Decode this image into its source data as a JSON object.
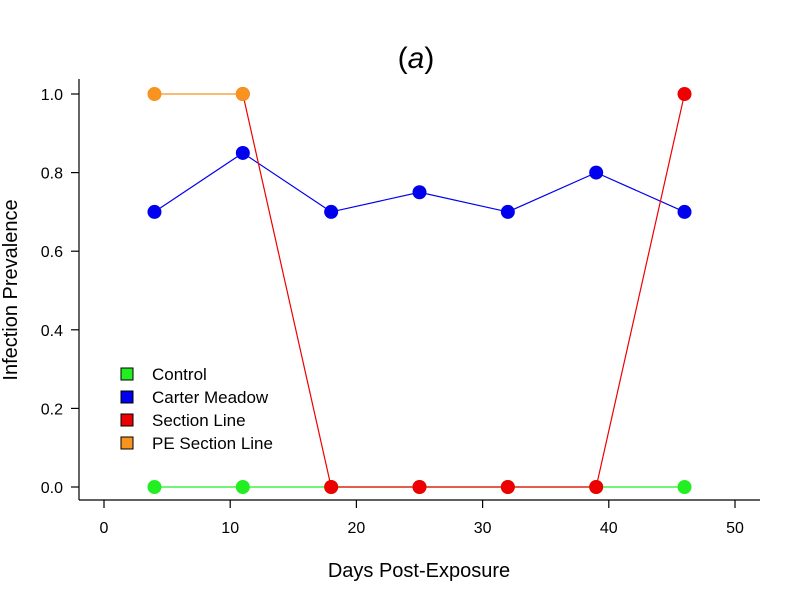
{
  "chart_data": {
    "type": "line",
    "title_prefix": "(",
    "title_letter": "a",
    "title_suffix": ")",
    "xlabel": "Days Post-Exposure",
    "ylabel": "Infection Prevalence",
    "xlim": [
      0,
      50
    ],
    "ylim": [
      0,
      1
    ],
    "xticks": [
      0,
      10,
      20,
      30,
      40,
      50
    ],
    "yticks": [
      0.0,
      0.2,
      0.4,
      0.6,
      0.8,
      1.0
    ],
    "xtick_labels": [
      "0",
      "10",
      "20",
      "30",
      "40",
      "50"
    ],
    "ytick_labels": [
      "0.0",
      "0.2",
      "0.4",
      "0.6",
      "0.8",
      "1.0"
    ],
    "grid": false,
    "legend_position": "bottom-left",
    "series": [
      {
        "name": "Control",
        "color": "#22ee22",
        "x": [
          4,
          11,
          18,
          25,
          32,
          39,
          46
        ],
        "y": [
          0,
          0,
          0,
          0,
          0,
          0,
          0
        ]
      },
      {
        "name": "Carter Meadow",
        "color": "#0000ee",
        "x": [
          4,
          11,
          18,
          25,
          32,
          39,
          46
        ],
        "y": [
          0.7,
          0.85,
          0.7,
          0.75,
          0.7,
          0.8,
          0.7
        ]
      },
      {
        "name": "Section Line",
        "color": "#ee0000",
        "x": [
          11,
          18,
          25,
          32,
          39,
          46
        ],
        "y": [
          1.0,
          0,
          0,
          0,
          0,
          1.0
        ]
      },
      {
        "name": "PE Section Line",
        "color": "#f7931e",
        "x": [
          4,
          11
        ],
        "y": [
          1.0,
          1.0
        ]
      }
    ]
  }
}
